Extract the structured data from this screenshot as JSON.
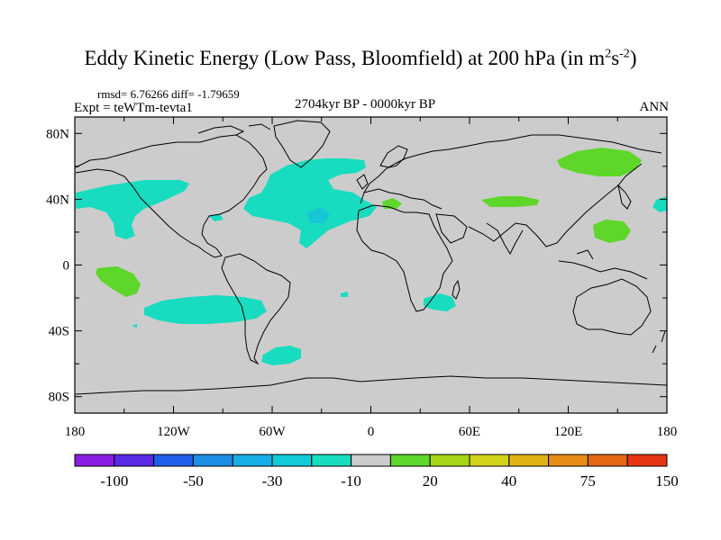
{
  "title_main": "Eddy Kinetic Energy (Low Pass, Bloomfield) at 200 hPa (in m",
  "title_exp1": "2",
  "title_mid": "s",
  "title_exp2": "-2",
  "title_end": ")",
  "stats": "rmsd= 6.76266 diff= -1.79659",
  "experiment": "Expt = teWTm-tevta1",
  "period": "2704kyr BP - 0000kyr BP",
  "season": "ANN",
  "axes": {
    "lat_labels": [
      "80N",
      "40N",
      "0",
      "40S",
      "80S"
    ],
    "lat_values": [
      80,
      40,
      0,
      -40,
      -80
    ],
    "lon_labels": [
      "180",
      "120W",
      "60W",
      "0",
      "60E",
      "120E",
      "180"
    ],
    "lon_values": [
      -180,
      -120,
      -60,
      0,
      60,
      120,
      180
    ],
    "lat_range": [
      -90,
      90
    ],
    "lon_range": [
      -180,
      180
    ]
  },
  "colorbar": {
    "colors": [
      "#8a1ee0",
      "#5a2ae6",
      "#2060e8",
      "#1c8ee6",
      "#16aee6",
      "#12cad8",
      "#18dcc0",
      "#cccccc",
      "#5ed62a",
      "#a6d616",
      "#d2d218",
      "#e0b214",
      "#e68c14",
      "#e66614",
      "#e63414"
    ],
    "labels": [
      "-100",
      "-50",
      "-30",
      "-10",
      "20",
      "40",
      "75",
      "150"
    ],
    "label_after_box": [
      1,
      3,
      5,
      7,
      9,
      11,
      13,
      15
    ]
  },
  "colors": {
    "land_fill": "#cccccc",
    "neg_light": "#18dcc0",
    "neg_mid": "#16c8d6",
    "pos_light": "#5ed62a"
  }
}
